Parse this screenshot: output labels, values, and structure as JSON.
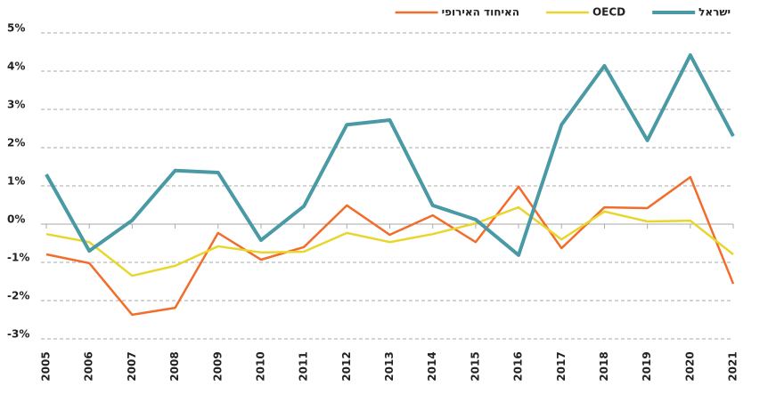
{
  "chart_data": {
    "type": "line",
    "categories": [
      "2005",
      "2006",
      "2007",
      "2008",
      "2009",
      "2010",
      "2011",
      "2012",
      "2013",
      "2014",
      "2015",
      "2016",
      "2017",
      "2018",
      "2019",
      "2020",
      "2021"
    ],
    "series": [
      {
        "name": "ישראל",
        "color": "#4a9aa5",
        "width": 4,
        "values": [
          1.3,
          -0.7,
          0.1,
          1.4,
          1.35,
          -0.42,
          0.47,
          2.6,
          2.72,
          0.49,
          0.12,
          -0.81,
          2.6,
          4.14,
          2.19,
          4.42,
          2.3
        ]
      },
      {
        "name": "OECD",
        "color": "#e8d62c",
        "width": 2.5,
        "values": [
          -0.26,
          -0.47,
          -1.35,
          -1.09,
          -0.58,
          -0.74,
          -0.72,
          -0.23,
          -0.47,
          -0.26,
          0.02,
          0.44,
          -0.4,
          0.33,
          0.07,
          0.09,
          -0.79
        ]
      },
      {
        "name": "האיחוד האירופי",
        "color": "#f26d2b",
        "width": 2.5,
        "values": [
          -0.79,
          -1.02,
          -2.37,
          -2.19,
          -0.23,
          -0.93,
          -0.6,
          0.49,
          -0.28,
          0.23,
          -0.47,
          0.98,
          -0.63,
          0.44,
          0.42,
          1.23,
          -1.56
        ]
      }
    ],
    "ylim": [
      -3,
      5
    ],
    "yticks": [
      {
        "value": -3,
        "label": "-3%"
      },
      {
        "value": -2,
        "label": "-2%"
      },
      {
        "value": -1,
        "label": "-1%"
      },
      {
        "value": 0,
        "label": "0%"
      },
      {
        "value": 1,
        "label": "1%"
      },
      {
        "value": 2,
        "label": "2%"
      },
      {
        "value": 3,
        "label": "3%"
      },
      {
        "value": 4,
        "label": "4%"
      },
      {
        "value": 5,
        "label": "5%"
      }
    ],
    "grid": true,
    "legend": "top-right"
  }
}
